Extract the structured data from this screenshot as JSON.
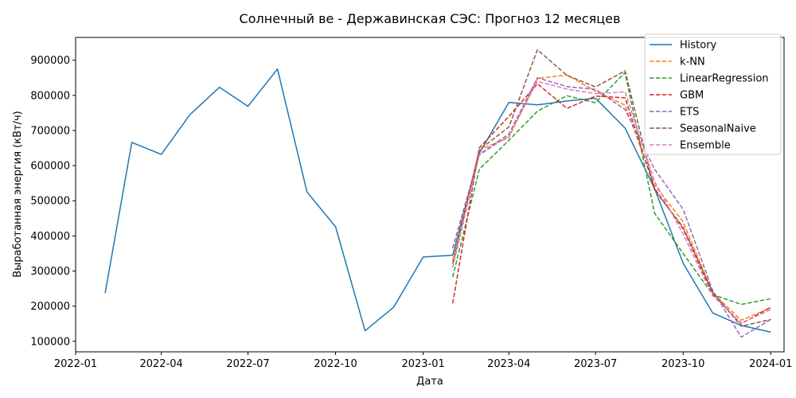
{
  "chart_data": {
    "type": "line",
    "title": "Солнечный ве - Державинская СЭС: Прогноз 12 месяцев",
    "xlabel": "Дата",
    "ylabel": "Выработанная энергия (кВт/ч)",
    "x_axis": "date",
    "xlim": [
      "2022-01-01",
      "2024-01-15"
    ],
    "ylim": [
      70000,
      965000
    ],
    "x_ticks": [
      "2022-01-01",
      "2022-04-01",
      "2022-07-01",
      "2022-10-01",
      "2023-01-01",
      "2023-04-01",
      "2023-07-01",
      "2023-10-01",
      "2024-01-01"
    ],
    "x_tick_labels": [
      "2022-01",
      "2022-04",
      "2022-07",
      "2022-10",
      "2023-01",
      "2023-04",
      "2023-07",
      "2023-10",
      "2024-01"
    ],
    "y_ticks": [
      100000,
      200000,
      300000,
      400000,
      500000,
      600000,
      700000,
      800000,
      900000
    ],
    "y_tick_labels": [
      "100000",
      "200000",
      "300000",
      "400000",
      "500000",
      "600000",
      "700000",
      "800000",
      "900000"
    ],
    "grid": false,
    "legend_position": "top-right",
    "series": [
      {
        "name": "History",
        "color": "#1f77b4",
        "style": "solid",
        "x": [
          "2022-02-01",
          "2022-03-01",
          "2022-04-01",
          "2022-05-01",
          "2022-06-01",
          "2022-07-01",
          "2022-08-01",
          "2022-09-01",
          "2022-10-01",
          "2022-11-01",
          "2022-12-01",
          "2023-01-01",
          "2023-02-01",
          "2023-03-01",
          "2023-04-01",
          "2023-05-01",
          "2023-06-01",
          "2023-07-01",
          "2023-08-01",
          "2023-09-01",
          "2023-10-01",
          "2023-11-01",
          "2023-12-01",
          "2024-01-01"
        ],
        "y": [
          237000,
          666000,
          632000,
          745000,
          823000,
          769000,
          875000,
          525000,
          426000,
          130000,
          197000,
          340000,
          345000,
          635000,
          780000,
          773000,
          784000,
          792000,
          707000,
          535000,
          322000,
          181000,
          145000,
          126000
        ]
      },
      {
        "name": "k-NN",
        "color": "#ff7f0e",
        "style": "dashed",
        "x": [
          "2023-02-01",
          "2023-03-01",
          "2023-04-01",
          "2023-05-01",
          "2023-06-01",
          "2023-07-01",
          "2023-08-01",
          "2023-09-01",
          "2023-10-01",
          "2023-11-01",
          "2023-12-01",
          "2024-01-01"
        ],
        "y": [
          330000,
          645000,
          680000,
          848000,
          858000,
          812000,
          772000,
          545000,
          440000,
          238000,
          160000,
          195000
        ]
      },
      {
        "name": "LinearRegression",
        "color": "#2ca02c",
        "style": "dashed",
        "x": [
          "2023-02-01",
          "2023-03-01",
          "2023-04-01",
          "2023-05-01",
          "2023-06-01",
          "2023-07-01",
          "2023-08-01",
          "2023-09-01",
          "2023-10-01",
          "2023-11-01",
          "2023-12-01",
          "2024-01-01"
        ],
        "y": [
          283000,
          590000,
          672000,
          755000,
          799000,
          779000,
          865000,
          465000,
          350000,
          233000,
          205000,
          221000
        ]
      },
      {
        "name": "GBM",
        "color": "#d62728",
        "style": "dashed",
        "x": [
          "2023-02-01",
          "2023-03-01",
          "2023-04-01",
          "2023-05-01",
          "2023-06-01",
          "2023-07-01",
          "2023-08-01",
          "2023-09-01",
          "2023-10-01",
          "2023-11-01",
          "2023-12-01",
          "2024-01-01"
        ],
        "y": [
          208000,
          651000,
          740000,
          833000,
          763000,
          798000,
          793000,
          535000,
          420000,
          235000,
          150000,
          197000
        ]
      },
      {
        "name": "ETS",
        "color": "#9467bd",
        "style": "dashed",
        "x": [
          "2023-02-01",
          "2023-03-01",
          "2023-04-01",
          "2023-05-01",
          "2023-06-01",
          "2023-07-01",
          "2023-08-01",
          "2023-09-01",
          "2023-10-01",
          "2023-11-01",
          "2023-12-01",
          "2024-01-01"
        ],
        "y": [
          365000,
          632000,
          690000,
          850000,
          825000,
          817000,
          760000,
          590000,
          476000,
          245000,
          112000,
          162000
        ]
      },
      {
        "name": "SeasonalNaive",
        "color": "#8c564b",
        "style": "dashed",
        "x": [
          "2023-02-01",
          "2023-03-01",
          "2023-04-01",
          "2023-05-01",
          "2023-06-01",
          "2023-07-01",
          "2023-08-01",
          "2023-09-01",
          "2023-10-01",
          "2023-11-01",
          "2023-12-01",
          "2024-01-01"
        ],
        "y": [
          321000,
          645000,
          710000,
          930000,
          857000,
          824000,
          870000,
          530000,
          425000,
          240000,
          143000,
          162000
        ]
      },
      {
        "name": "Ensemble",
        "color": "#e377c2",
        "style": "dashed",
        "x": [
          "2023-02-01",
          "2023-03-01",
          "2023-04-01",
          "2023-05-01",
          "2023-06-01",
          "2023-07-01",
          "2023-08-01",
          "2023-09-01",
          "2023-10-01",
          "2023-11-01",
          "2023-12-01",
          "2024-01-01"
        ],
        "y": [
          310000,
          630000,
          685000,
          840000,
          818000,
          805000,
          810000,
          555000,
          405000,
          230000,
          152000,
          190000
        ]
      }
    ]
  }
}
